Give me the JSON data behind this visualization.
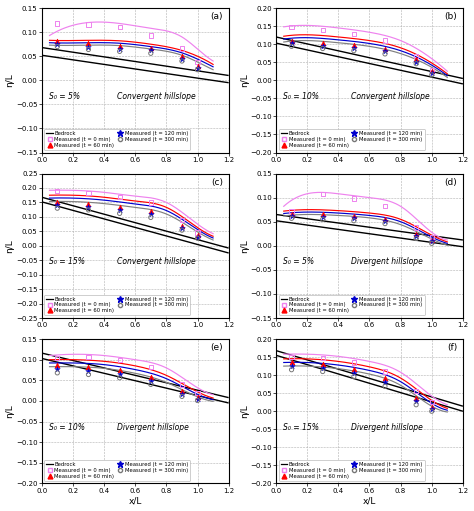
{
  "panels": [
    {
      "label": "(a)",
      "title_left": "S₀ = 5%",
      "title_right": "Convergent hillslope",
      "ylim": [
        -0.15,
        0.15
      ],
      "yticks": [
        -0.15,
        -0.1,
        -0.05,
        0.0,
        0.05,
        0.1,
        0.15
      ],
      "bedrock_lines": [
        {
          "x": [
            0.0,
            1.2
          ],
          "y": [
            0.052,
            -0.005
          ]
        },
        {
          "x": [
            0.0,
            1.2
          ],
          "y": [
            0.068,
            0.01
          ]
        }
      ],
      "curve_t0": {
        "x": [
          0.05,
          0.3,
          0.5,
          0.7,
          0.9,
          1.0,
          1.1
        ],
        "y": [
          0.093,
          0.12,
          0.118,
          0.108,
          0.09,
          0.065,
          0.04
        ]
      },
      "curve_t60": {
        "x": [
          0.05,
          0.3,
          0.5,
          0.7,
          0.9,
          1.0,
          1.1
        ],
        "y": [
          0.083,
          0.083,
          0.082,
          0.075,
          0.062,
          0.05,
          0.033
        ]
      },
      "curve_t120": {
        "x": [
          0.05,
          0.3,
          0.5,
          0.7,
          0.9,
          1.0,
          1.1
        ],
        "y": [
          0.078,
          0.078,
          0.077,
          0.07,
          0.057,
          0.044,
          0.028
        ]
      },
      "curve_t300": {
        "x": [
          0.05,
          0.3,
          0.5,
          0.7,
          0.9,
          1.0,
          1.1
        ],
        "y": [
          0.073,
          0.073,
          0.072,
          0.065,
          0.052,
          0.038,
          0.022
        ]
      },
      "pts_t0": {
        "x": [
          0.1,
          0.3,
          0.5,
          0.7,
          0.9,
          1.0
        ],
        "y": [
          0.118,
          0.116,
          0.111,
          0.093,
          0.066,
          0.038
        ]
      },
      "pts_t60": {
        "x": [
          0.1,
          0.3,
          0.5,
          0.7,
          0.9,
          1.0
        ],
        "y": [
          0.082,
          0.077,
          0.072,
          0.067,
          0.05,
          0.03
        ]
      },
      "pts_t120": {
        "x": [
          0.1,
          0.3,
          0.5,
          0.7,
          0.9,
          1.0
        ],
        "y": [
          0.076,
          0.07,
          0.066,
          0.062,
          0.045,
          0.026
        ]
      },
      "pts_t300": {
        "x": [
          0.1,
          0.3,
          0.5,
          0.7,
          0.9,
          1.0
        ],
        "y": [
          0.07,
          0.064,
          0.06,
          0.056,
          0.04,
          0.022
        ]
      }
    },
    {
      "label": "(b)",
      "title_left": "S₀ = 10%",
      "title_right": "Convergent hillslope",
      "ylim": [
        -0.2,
        0.2
      ],
      "yticks": [
        -0.2,
        -0.15,
        -0.1,
        -0.05,
        0.0,
        0.05,
        0.1,
        0.15,
        0.2
      ],
      "bedrock_lines": [
        {
          "x": [
            0.0,
            1.2
          ],
          "y": [
            0.103,
            -0.01
          ]
        },
        {
          "x": [
            0.0,
            1.2
          ],
          "y": [
            0.12,
            0.005
          ]
        }
      ],
      "curve_t0": {
        "x": [
          0.05,
          0.2,
          0.4,
          0.6,
          0.8,
          1.0,
          1.1
        ],
        "y": [
          0.148,
          0.152,
          0.145,
          0.133,
          0.11,
          0.06,
          0.025
        ]
      },
      "curve_t60": {
        "x": [
          0.05,
          0.2,
          0.4,
          0.6,
          0.8,
          1.0,
          1.1
        ],
        "y": [
          0.122,
          0.126,
          0.12,
          0.11,
          0.09,
          0.048,
          0.018
        ]
      },
      "curve_t120": {
        "x": [
          0.05,
          0.2,
          0.4,
          0.6,
          0.8,
          1.0,
          1.1
        ],
        "y": [
          0.114,
          0.118,
          0.112,
          0.102,
          0.082,
          0.042,
          0.013
        ]
      },
      "curve_t300": {
        "x": [
          0.05,
          0.2,
          0.4,
          0.6,
          0.8,
          1.0,
          1.1
        ],
        "y": [
          0.106,
          0.11,
          0.104,
          0.094,
          0.074,
          0.036,
          0.008
        ]
      },
      "pts_t0": {
        "x": [
          0.1,
          0.3,
          0.5,
          0.7,
          0.9,
          1.0
        ],
        "y": [
          0.148,
          0.14,
          0.128,
          0.11,
          0.068,
          0.028
        ]
      },
      "pts_t60": {
        "x": [
          0.1,
          0.3,
          0.5,
          0.7,
          0.9,
          1.0
        ],
        "y": [
          0.11,
          0.103,
          0.097,
          0.088,
          0.058,
          0.025
        ]
      },
      "pts_t120": {
        "x": [
          0.1,
          0.3,
          0.5,
          0.7,
          0.9,
          1.0
        ],
        "y": [
          0.102,
          0.096,
          0.09,
          0.081,
          0.052,
          0.02
        ]
      },
      "pts_t300": {
        "x": [
          0.1,
          0.3,
          0.5,
          0.7,
          0.9,
          1.0
        ],
        "y": [
          0.094,
          0.088,
          0.082,
          0.073,
          0.046,
          0.015
        ]
      }
    },
    {
      "label": "(c)",
      "title_left": "S₀ = 15%",
      "title_right": "Convergent hillslope",
      "ylim": [
        -0.25,
        0.25
      ],
      "yticks": [
        -0.25,
        -0.2,
        -0.15,
        -0.1,
        -0.05,
        0.0,
        0.05,
        0.1,
        0.15,
        0.2,
        0.25
      ],
      "bedrock_lines": [
        {
          "x": [
            0.0,
            1.2
          ],
          "y": [
            0.152,
            -0.025
          ]
        },
        {
          "x": [
            0.0,
            1.2
          ],
          "y": [
            0.168,
            -0.008
          ]
        }
      ],
      "curve_t0": {
        "x": [
          0.05,
          0.2,
          0.4,
          0.6,
          0.8,
          1.0,
          1.1
        ],
        "y": [
          0.192,
          0.192,
          0.185,
          0.172,
          0.15,
          0.075,
          0.042
        ]
      },
      "curve_t60": {
        "x": [
          0.05,
          0.2,
          0.4,
          0.6,
          0.8,
          1.0,
          1.1
        ],
        "y": [
          0.175,
          0.175,
          0.168,
          0.155,
          0.133,
          0.063,
          0.033
        ]
      },
      "curve_t120": {
        "x": [
          0.05,
          0.2,
          0.4,
          0.6,
          0.8,
          1.0,
          1.1
        ],
        "y": [
          0.165,
          0.165,
          0.158,
          0.145,
          0.122,
          0.056,
          0.027
        ]
      },
      "curve_t300": {
        "x": [
          0.05,
          0.2,
          0.4,
          0.6,
          0.8,
          1.0,
          1.1
        ],
        "y": [
          0.153,
          0.153,
          0.146,
          0.133,
          0.11,
          0.048,
          0.02
        ]
      },
      "pts_t0": {
        "x": [
          0.1,
          0.3,
          0.5,
          0.7,
          0.9,
          1.0
        ],
        "y": [
          0.19,
          0.183,
          0.17,
          0.15,
          0.088,
          0.046
        ]
      },
      "pts_t60": {
        "x": [
          0.1,
          0.3,
          0.5,
          0.7,
          0.9,
          1.0
        ],
        "y": [
          0.15,
          0.145,
          0.133,
          0.12,
          0.07,
          0.038
        ]
      },
      "pts_t120": {
        "x": [
          0.1,
          0.3,
          0.5,
          0.7,
          0.9,
          1.0
        ],
        "y": [
          0.14,
          0.135,
          0.123,
          0.11,
          0.062,
          0.032
        ]
      },
      "pts_t300": {
        "x": [
          0.1,
          0.3,
          0.5,
          0.7,
          0.9,
          1.0
        ],
        "y": [
          0.13,
          0.124,
          0.112,
          0.098,
          0.054,
          0.026
        ]
      }
    },
    {
      "label": "(d)",
      "title_left": "S₀ = 5%",
      "title_right": "Divergent hillslope",
      "ylim": [
        -0.15,
        0.15
      ],
      "yticks": [
        -0.15,
        -0.1,
        -0.05,
        0.0,
        0.05,
        0.1,
        0.15
      ],
      "bedrock_lines": [
        {
          "x": [
            0.0,
            1.2
          ],
          "y": [
            0.052,
            -0.002
          ]
        },
        {
          "x": [
            0.0,
            1.2
          ],
          "y": [
            0.065,
            0.012
          ]
        }
      ],
      "curve_t0": {
        "x": [
          0.05,
          0.2,
          0.4,
          0.6,
          0.8,
          1.0,
          1.1
        ],
        "y": [
          0.082,
          0.108,
          0.108,
          0.1,
          0.082,
          0.028,
          0.012
        ]
      },
      "curve_t60": {
        "x": [
          0.05,
          0.2,
          0.4,
          0.6,
          0.8,
          1.0,
          1.1
        ],
        "y": [
          0.072,
          0.075,
          0.073,
          0.068,
          0.055,
          0.022,
          0.008
        ]
      },
      "curve_t120": {
        "x": [
          0.05,
          0.2,
          0.4,
          0.6,
          0.8,
          1.0,
          1.1
        ],
        "y": [
          0.067,
          0.07,
          0.068,
          0.063,
          0.05,
          0.018,
          0.005
        ]
      },
      "curve_t300": {
        "x": [
          0.05,
          0.2,
          0.4,
          0.6,
          0.8,
          1.0,
          1.1
        ],
        "y": [
          0.062,
          0.065,
          0.063,
          0.058,
          0.044,
          0.014,
          0.001
        ]
      },
      "pts_t0": {
        "x": [
          0.1,
          0.3,
          0.5,
          0.7,
          0.9,
          1.0
        ],
        "y": [
          0.072,
          0.108,
          0.098,
          0.082,
          0.038,
          0.018
        ]
      },
      "pts_t60": {
        "x": [
          0.1,
          0.3,
          0.5,
          0.7,
          0.9,
          1.0
        ],
        "y": [
          0.067,
          0.065,
          0.062,
          0.056,
          0.025,
          0.012
        ]
      },
      "pts_t120": {
        "x": [
          0.1,
          0.3,
          0.5,
          0.7,
          0.9,
          1.0
        ],
        "y": [
          0.062,
          0.06,
          0.057,
          0.051,
          0.02,
          0.009
        ]
      },
      "pts_t300": {
        "x": [
          0.1,
          0.3,
          0.5,
          0.7,
          0.9,
          1.0
        ],
        "y": [
          0.057,
          0.055,
          0.052,
          0.046,
          0.015,
          0.005
        ]
      }
    },
    {
      "label": "(e)",
      "title_left": "S₀ = 10%",
      "title_right": "Divergent hillslope",
      "ylim": [
        -0.2,
        0.15
      ],
      "yticks": [
        -0.2,
        -0.15,
        -0.1,
        -0.05,
        0.0,
        0.05,
        0.1,
        0.15
      ],
      "bedrock_lines": [
        {
          "x": [
            0.0,
            1.2
          ],
          "y": [
            0.103,
            -0.005
          ]
        },
        {
          "x": [
            0.0,
            1.2
          ],
          "y": [
            0.116,
            0.008
          ]
        }
      ],
      "curve_t0": {
        "x": [
          0.05,
          0.2,
          0.4,
          0.6,
          0.8,
          1.0,
          1.1
        ],
        "y": [
          0.11,
          0.113,
          0.11,
          0.1,
          0.08,
          0.032,
          0.015
        ]
      },
      "curve_t60": {
        "x": [
          0.05,
          0.2,
          0.4,
          0.6,
          0.8,
          1.0,
          1.1
        ],
        "y": [
          0.1,
          0.1,
          0.096,
          0.085,
          0.062,
          0.022,
          0.007
        ]
      },
      "curve_t120": {
        "x": [
          0.05,
          0.2,
          0.4,
          0.6,
          0.8,
          1.0,
          1.1
        ],
        "y": [
          0.092,
          0.092,
          0.088,
          0.076,
          0.054,
          0.016,
          0.003
        ]
      },
      "curve_t300": {
        "x": [
          0.05,
          0.2,
          0.4,
          0.6,
          0.8,
          1.0,
          1.1
        ],
        "y": [
          0.083,
          0.083,
          0.079,
          0.067,
          0.045,
          0.01,
          -0.001
        ]
      },
      "pts_t0": {
        "x": [
          0.1,
          0.3,
          0.5,
          0.7,
          0.9,
          1.0
        ],
        "y": [
          0.105,
          0.107,
          0.1,
          0.082,
          0.04,
          0.02
        ]
      },
      "pts_t60": {
        "x": [
          0.1,
          0.3,
          0.5,
          0.7,
          0.9,
          1.0
        ],
        "y": [
          0.086,
          0.082,
          0.074,
          0.058,
          0.025,
          0.01
        ]
      },
      "pts_t120": {
        "x": [
          0.1,
          0.3,
          0.5,
          0.7,
          0.9,
          1.0
        ],
        "y": [
          0.077,
          0.073,
          0.065,
          0.049,
          0.018,
          0.005
        ]
      },
      "pts_t300": {
        "x": [
          0.1,
          0.3,
          0.5,
          0.7,
          0.9,
          1.0
        ],
        "y": [
          0.068,
          0.064,
          0.056,
          0.04,
          0.011,
          0.001
        ]
      }
    },
    {
      "label": "(f)",
      "title_left": "S₀ = 15%",
      "title_right": "Divergent hillslope",
      "ylim": [
        -0.2,
        0.2
      ],
      "yticks": [
        -0.2,
        -0.15,
        -0.1,
        -0.05,
        0.0,
        0.05,
        0.1,
        0.15,
        0.2
      ],
      "bedrock_lines": [
        {
          "x": [
            0.0,
            1.2
          ],
          "y": [
            0.155,
            0.0
          ]
        },
        {
          "x": [
            0.0,
            1.2
          ],
          "y": [
            0.168,
            0.014
          ]
        }
      ],
      "curve_t0": {
        "x": [
          0.05,
          0.2,
          0.4,
          0.6,
          0.8,
          1.0,
          1.1
        ],
        "y": [
          0.158,
          0.158,
          0.152,
          0.138,
          0.108,
          0.042,
          0.018
        ]
      },
      "curve_t60": {
        "x": [
          0.05,
          0.2,
          0.4,
          0.6,
          0.8,
          1.0,
          1.1
        ],
        "y": [
          0.145,
          0.145,
          0.138,
          0.123,
          0.092,
          0.03,
          0.008
        ]
      },
      "curve_t120": {
        "x": [
          0.05,
          0.2,
          0.4,
          0.6,
          0.8,
          1.0,
          1.1
        ],
        "y": [
          0.135,
          0.135,
          0.128,
          0.113,
          0.082,
          0.022,
          0.003
        ]
      },
      "curve_t300": {
        "x": [
          0.05,
          0.2,
          0.4,
          0.6,
          0.8,
          1.0,
          1.1
        ],
        "y": [
          0.125,
          0.125,
          0.118,
          0.103,
          0.072,
          0.014,
          -0.002
        ]
      },
      "pts_t0": {
        "x": [
          0.1,
          0.3,
          0.5,
          0.7,
          0.9,
          1.0
        ],
        "y": [
          0.15,
          0.148,
          0.135,
          0.11,
          0.055,
          0.025
        ]
      },
      "pts_t60": {
        "x": [
          0.1,
          0.3,
          0.5,
          0.7,
          0.9,
          1.0
        ],
        "y": [
          0.136,
          0.132,
          0.118,
          0.092,
          0.038,
          0.013
        ]
      },
      "pts_t120": {
        "x": [
          0.1,
          0.3,
          0.5,
          0.7,
          0.9,
          1.0
        ],
        "y": [
          0.126,
          0.121,
          0.107,
          0.08,
          0.028,
          0.006
        ]
      },
      "pts_t300": {
        "x": [
          0.1,
          0.3,
          0.5,
          0.7,
          0.9,
          1.0
        ],
        "y": [
          0.115,
          0.11,
          0.096,
          0.069,
          0.018,
          0.0
        ]
      }
    }
  ],
  "colors": {
    "bedrock": "#000000",
    "t0_curve": "#ee82ee",
    "t60_curve": "#ff0000",
    "t120_curve": "#0000cd",
    "t300_curve": "#808080",
    "t0_pts": "#ee82ee",
    "t60_pts": "#ff0000",
    "t120_pts": "#0000cd",
    "t300_pts": "#808080"
  },
  "xlabel": "x/L",
  "ylabel": "η/L",
  "xlim": [
    0.0,
    1.2
  ],
  "xticks": [
    0.0,
    0.2,
    0.4,
    0.6,
    0.8,
    1.0,
    1.2
  ]
}
